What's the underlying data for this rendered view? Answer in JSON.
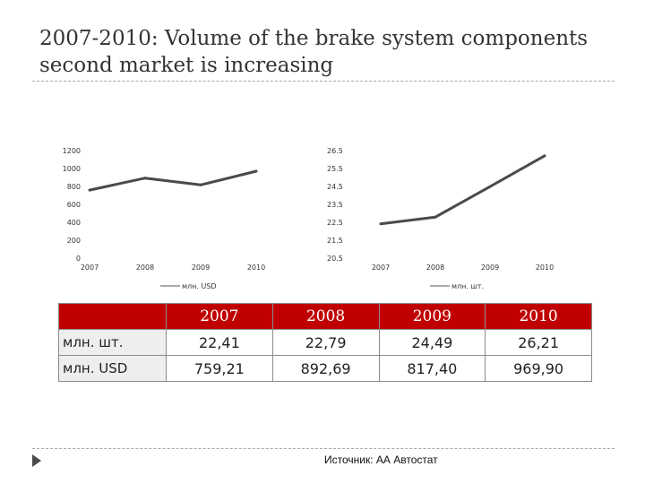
{
  "title": "2007-2010: Volume of the brake system components second market is increasing",
  "source": "Источник: АА Автостат",
  "colors": {
    "line": "#4a4a4a",
    "header": "#c00000",
    "row_label_bg": "#eeeeee"
  },
  "chart_data": [
    {
      "type": "line",
      "categories": [
        "2007",
        "2008",
        "2009",
        "2010"
      ],
      "series": [
        {
          "name": "млн. USD",
          "values": [
            759.21,
            892.69,
            817.4,
            969.9
          ]
        }
      ],
      "ylim": [
        0,
        1200
      ],
      "yticks": [
        "1200",
        "1000",
        "800",
        "600",
        "400",
        "200",
        "0"
      ],
      "legend": "bottom",
      "grid": false
    },
    {
      "type": "line",
      "categories": [
        "2007",
        "2008",
        "2009",
        "2010"
      ],
      "series": [
        {
          "name": "млн. шт.",
          "values": [
            22.41,
            22.79,
            24.49,
            26.21
          ]
        }
      ],
      "ylim": [
        20.5,
        26.5
      ],
      "yticks": [
        "26.5",
        "25.5",
        "24.5",
        "23.5",
        "22.5",
        "21.5",
        "20.5"
      ],
      "legend": "bottom",
      "grid": false
    }
  ],
  "table": {
    "columns": [
      "",
      "2007",
      "2008",
      "2009",
      "2010"
    ],
    "rows": [
      {
        "label": "млн. шт.",
        "values": [
          "22,41",
          "22,79",
          "24,49",
          "26,21"
        ]
      },
      {
        "label": "млн. USD",
        "values": [
          "759,21",
          "892,69",
          "817,40",
          "969,90"
        ]
      }
    ]
  }
}
